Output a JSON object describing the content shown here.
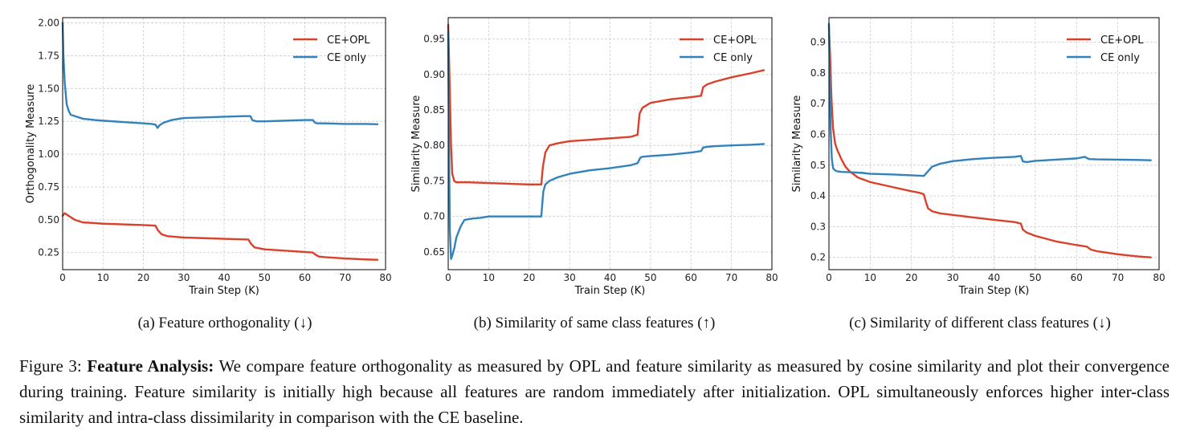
{
  "figure": {
    "label": "Figure 3:",
    "caption_title": "Feature Analysis:",
    "caption_text": "We compare feature orthogonality as measured by OPL and feature similarity as measured by cosine similarity and plot their convergence during training. Feature similarity is initially high because all features are random immediately after initialization. OPL simultaneously enforces higher inter-class similarity and intra-class dissimilarity in comparison with the CE baseline."
  },
  "subcaptions": [
    "(a) Feature orthogonality (↓)",
    "(b) Similarity of same class features (↑)",
    "(c) Similarity of different class features (↓)"
  ],
  "colors": {
    "ce_opl": "#d9412b",
    "ce_only": "#3182bd",
    "grid": "#cccccc",
    "axis": "#000000"
  },
  "chart_data": [
    {
      "type": "line",
      "title": "",
      "xlabel": "Train Step (K)",
      "ylabel": "Orthogonality Measure",
      "xlim": [
        0,
        80
      ],
      "ylim": [
        0.12,
        2.04
      ],
      "xticks": [
        0,
        10,
        20,
        30,
        40,
        50,
        60,
        70,
        80
      ],
      "yticks": [
        0.25,
        0.5,
        0.75,
        1.0,
        1.25,
        1.5,
        1.75,
        2.0
      ],
      "ytick_labels": [
        "0.25",
        "0.50",
        "0.75",
        "1.00",
        "1.25",
        "1.50",
        "1.75",
        "2.00"
      ],
      "grid": true,
      "legend": "top-right",
      "series": [
        {
          "name": "CE+OPL",
          "color": "#d9412b",
          "x": [
            0,
            0.5,
            1,
            2,
            3,
            5,
            8,
            10,
            15,
            20,
            23,
            23.6,
            24.5,
            26,
            30,
            35,
            40,
            46,
            46.6,
            47.5,
            50,
            55,
            60,
            62,
            62.6,
            63.5,
            65,
            70,
            75,
            78
          ],
          "y": [
            0.53,
            0.55,
            0.54,
            0.52,
            0.5,
            0.48,
            0.475,
            0.47,
            0.465,
            0.46,
            0.455,
            0.42,
            0.39,
            0.375,
            0.365,
            0.36,
            0.355,
            0.35,
            0.32,
            0.29,
            0.275,
            0.265,
            0.255,
            0.25,
            0.235,
            0.22,
            0.215,
            0.205,
            0.198,
            0.195
          ]
        },
        {
          "name": "CE only",
          "color": "#3182bd",
          "x": [
            0,
            0.2,
            0.5,
            1,
            1.5,
            2,
            3,
            5,
            8,
            10,
            15,
            20,
            22,
            23,
            23.5,
            24,
            25,
            27,
            30,
            35,
            40,
            45,
            46.5,
            47,
            48,
            50,
            55,
            60,
            62,
            62.5,
            63,
            65,
            70,
            75,
            78
          ],
          "y": [
            2.0,
            1.75,
            1.55,
            1.38,
            1.33,
            1.3,
            1.29,
            1.27,
            1.26,
            1.255,
            1.245,
            1.235,
            1.23,
            1.225,
            1.2,
            1.22,
            1.24,
            1.26,
            1.275,
            1.28,
            1.285,
            1.29,
            1.29,
            1.26,
            1.25,
            1.25,
            1.255,
            1.26,
            1.26,
            1.24,
            1.235,
            1.235,
            1.23,
            1.23,
            1.228
          ]
        }
      ]
    },
    {
      "type": "line",
      "title": "",
      "xlabel": "Train Step (K)",
      "ylabel": "Similarity Measure",
      "xlim": [
        0,
        80
      ],
      "ylim": [
        0.625,
        0.98
      ],
      "xticks": [
        0,
        10,
        20,
        30,
        40,
        50,
        60,
        70,
        80
      ],
      "yticks": [
        0.65,
        0.7,
        0.75,
        0.8,
        0.85,
        0.9,
        0.95
      ],
      "ytick_labels": [
        "0.65",
        "0.70",
        "0.75",
        "0.80",
        "0.85",
        "0.90",
        "0.95"
      ],
      "grid": true,
      "legend": "top-right",
      "series": [
        {
          "name": "CE+OPL",
          "color": "#d9412b",
          "x": [
            0,
            0.3,
            0.7,
            1,
            1.5,
            2,
            5,
            10,
            15,
            20,
            23,
            23.4,
            24,
            25,
            27,
            30,
            35,
            40,
            45,
            46.8,
            47.3,
            48,
            50,
            55,
            60,
            62.5,
            63,
            64,
            66,
            70,
            75,
            78
          ],
          "y": [
            0.97,
            0.9,
            0.8,
            0.76,
            0.75,
            0.748,
            0.748,
            0.747,
            0.746,
            0.745,
            0.745,
            0.77,
            0.79,
            0.8,
            0.803,
            0.806,
            0.808,
            0.81,
            0.812,
            0.815,
            0.845,
            0.853,
            0.86,
            0.865,
            0.868,
            0.87,
            0.882,
            0.886,
            0.89,
            0.896,
            0.902,
            0.906
          ]
        },
        {
          "name": "CE only",
          "color": "#3182bd",
          "x": [
            0,
            0.2,
            0.4,
            0.7,
            1,
            1.5,
            2,
            3,
            4,
            6,
            8,
            10,
            15,
            20,
            23,
            23.5,
            24,
            25,
            27,
            30,
            35,
            40,
            45,
            46.8,
            47.5,
            48,
            50,
            55,
            60,
            62.5,
            63,
            64,
            66,
            70,
            75,
            78
          ],
          "y": [
            0.96,
            0.8,
            0.68,
            0.64,
            0.645,
            0.655,
            0.67,
            0.685,
            0.695,
            0.697,
            0.698,
            0.7,
            0.7,
            0.7,
            0.7,
            0.735,
            0.745,
            0.75,
            0.755,
            0.76,
            0.765,
            0.768,
            0.772,
            0.775,
            0.783,
            0.784,
            0.785,
            0.787,
            0.79,
            0.792,
            0.797,
            0.798,
            0.799,
            0.8,
            0.801,
            0.802
          ]
        }
      ]
    },
    {
      "type": "line",
      "title": "",
      "xlabel": "Train Step (K)",
      "ylabel": "Similarity Measure",
      "xlim": [
        0,
        80
      ],
      "ylim": [
        0.16,
        0.98
      ],
      "xticks": [
        0,
        10,
        20,
        30,
        40,
        50,
        60,
        70,
        80
      ],
      "yticks": [
        0.2,
        0.3,
        0.4,
        0.5,
        0.6,
        0.7,
        0.8,
        0.9
      ],
      "ytick_labels": [
        "0.2",
        "0.3",
        "0.4",
        "0.5",
        "0.6",
        "0.7",
        "0.8",
        "0.9"
      ],
      "grid": true,
      "legend": "top-right",
      "series": [
        {
          "name": "CE+OPL",
          "color": "#d9412b",
          "x": [
            0,
            0.3,
            0.6,
            1,
            1.5,
            2,
            3,
            4,
            5,
            7,
            10,
            15,
            20,
            22,
            23,
            23.5,
            24,
            25,
            27,
            30,
            35,
            40,
            45,
            46.5,
            47,
            48,
            50,
            55,
            60,
            62.5,
            63.5,
            65,
            70,
            75,
            78
          ],
          "y": [
            0.95,
            0.85,
            0.72,
            0.62,
            0.57,
            0.55,
            0.52,
            0.495,
            0.48,
            0.46,
            0.445,
            0.43,
            0.415,
            0.41,
            0.405,
            0.38,
            0.36,
            0.35,
            0.343,
            0.338,
            0.33,
            0.322,
            0.315,
            0.31,
            0.29,
            0.28,
            0.27,
            0.252,
            0.24,
            0.235,
            0.225,
            0.22,
            0.21,
            0.203,
            0.2
          ]
        },
        {
          "name": "CE only",
          "color": "#3182bd",
          "x": [
            0,
            0.2,
            0.4,
            0.7,
            1,
            1.5,
            2,
            3,
            5,
            8,
            10,
            15,
            20,
            23,
            24,
            25,
            27,
            30,
            35,
            40,
            45,
            46.5,
            47,
            48,
            50,
            55,
            60,
            62,
            63,
            65,
            70,
            75,
            78
          ],
          "y": [
            0.96,
            0.8,
            0.62,
            0.52,
            0.49,
            0.483,
            0.48,
            0.478,
            0.477,
            0.475,
            0.472,
            0.47,
            0.467,
            0.465,
            0.48,
            0.495,
            0.505,
            0.513,
            0.52,
            0.524,
            0.527,
            0.53,
            0.512,
            0.51,
            0.514,
            0.518,
            0.522,
            0.527,
            0.52,
            0.519,
            0.518,
            0.517,
            0.516
          ]
        }
      ]
    }
  ]
}
